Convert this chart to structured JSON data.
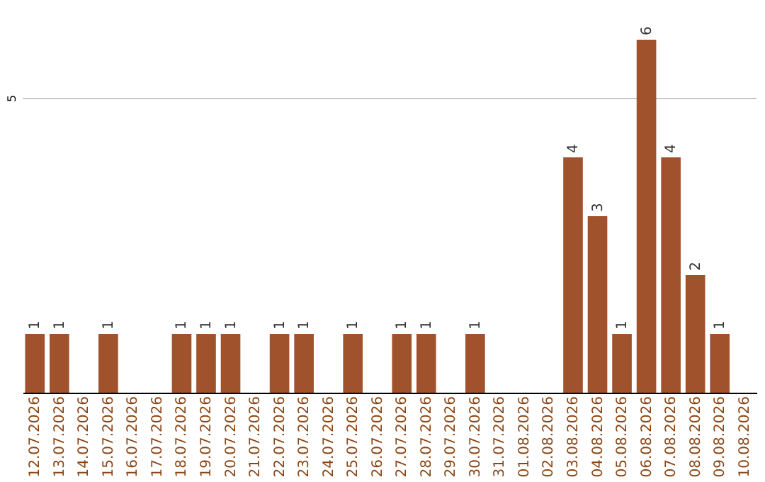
{
  "chart_data": {
    "type": "bar",
    "categories": [
      "12.07.2026",
      "13.07.2026",
      "14.07.2026",
      "15.07.2026",
      "16.07.2026",
      "17.07.2026",
      "18.07.2026",
      "19.07.2026",
      "20.07.2026",
      "21.07.2026",
      "22.07.2026",
      "23.07.2026",
      "24.07.2026",
      "25.07.2026",
      "26.07.2026",
      "27.07.2026",
      "28.07.2026",
      "29.07.2026",
      "30.07.2026",
      "31.07.2026",
      "01.08.2026",
      "02.08.2026",
      "03.08.2026",
      "04.08.2026",
      "05.08.2026",
      "06.08.2026",
      "07.08.2026",
      "08.08.2026",
      "09.08.2026",
      "10.08.2026"
    ],
    "values": [
      1,
      1,
      0,
      1,
      0,
      0,
      1,
      1,
      1,
      0,
      1,
      1,
      0,
      1,
      0,
      1,
      1,
      0,
      1,
      0,
      0,
      0,
      4,
      3,
      1,
      6,
      4,
      2,
      1,
      0
    ],
    "value_labels": [
      "1",
      "1",
      null,
      "1",
      null,
      null,
      "1",
      "1",
      "1",
      null,
      "1",
      "1",
      null,
      "1",
      null,
      "1",
      "1",
      null,
      "1",
      null,
      null,
      null,
      "4",
      "3",
      "1",
      "6",
      "4",
      "2",
      "1",
      null
    ],
    "color": "#a0522d",
    "ref_lines": [
      {
        "axis": "y",
        "value": 5,
        "label": "5",
        "color": "#c8c8c8"
      }
    ]
  }
}
